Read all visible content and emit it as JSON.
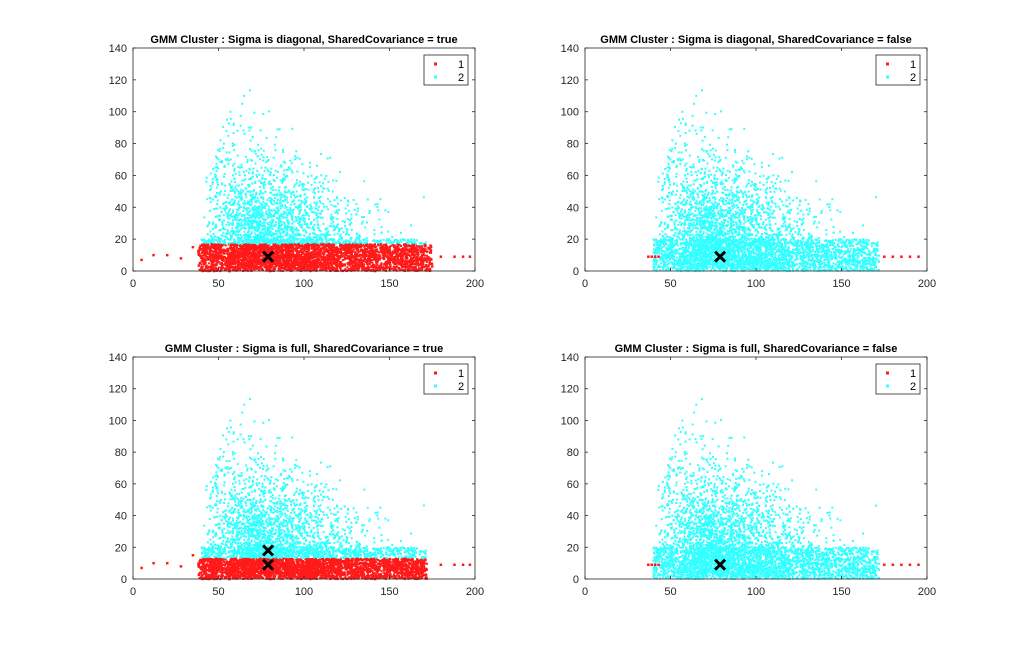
{
  "figure": {
    "background": "#ffffff",
    "cluster_colors": {
      "1": "#ff1a1a",
      "2": "#33ffff"
    },
    "centroid_color": "#000000"
  },
  "chart_data": [
    {
      "type": "scatter",
      "title": "GMM Cluster : Sigma is diagonal, SharedCovariance = true",
      "xlim": [
        0,
        200
      ],
      "ylim": [
        0,
        140
      ],
      "xticks": [
        0,
        50,
        100,
        150,
        200
      ],
      "yticks": [
        0,
        20,
        40,
        60,
        80,
        100,
        120,
        140
      ],
      "grid": false,
      "legend": {
        "placement": "top-right",
        "entries": [
          "1",
          "2"
        ]
      },
      "series": [
        {
          "name": "1",
          "color": "#ff1a1a",
          "region": {
            "y_upper": 17,
            "x_range": [
              38,
              175
            ]
          },
          "outliers": [
            [
              5,
              7
            ],
            [
              12,
              10
            ],
            [
              20,
              10
            ],
            [
              28,
              8
            ],
            [
              35,
              15
            ],
            [
              180,
              9
            ],
            [
              188,
              9
            ],
            [
              193,
              9
            ],
            [
              197,
              9
            ]
          ]
        },
        {
          "name": "2",
          "color": "#33ffff"
        }
      ],
      "centroids": [
        [
          79,
          9
        ]
      ]
    },
    {
      "type": "scatter",
      "title": "GMM Cluster : Sigma is diagonal, SharedCovariance = false",
      "xlim": [
        0,
        200
      ],
      "ylim": [
        0,
        140
      ],
      "xticks": [
        0,
        50,
        100,
        150,
        200
      ],
      "yticks": [
        0,
        20,
        40,
        60,
        80,
        100,
        120,
        140
      ],
      "grid": false,
      "legend": {
        "placement": "top-right",
        "entries": [
          "1",
          "2"
        ]
      },
      "series": [
        {
          "name": "1",
          "color": "#ff1a1a",
          "outliers": [
            [
              37,
              9
            ],
            [
              39,
              9
            ],
            [
              41,
              9
            ],
            [
              43,
              9
            ],
            [
              175,
              9
            ],
            [
              180,
              9
            ],
            [
              185,
              9
            ],
            [
              190,
              9
            ],
            [
              195,
              9
            ]
          ]
        },
        {
          "name": "2",
          "color": "#33ffff"
        }
      ],
      "centroids": [
        [
          79,
          9
        ]
      ]
    },
    {
      "type": "scatter",
      "title": "GMM Cluster : Sigma is full, SharedCovariance = true",
      "xlim": [
        0,
        200
      ],
      "ylim": [
        0,
        140
      ],
      "xticks": [
        0,
        50,
        100,
        150,
        200
      ],
      "yticks": [
        0,
        20,
        40,
        60,
        80,
        100,
        120,
        140
      ],
      "grid": false,
      "legend": {
        "placement": "top-right",
        "entries": [
          "1",
          "2"
        ]
      },
      "series": [
        {
          "name": "1",
          "color": "#ff1a1a",
          "region": {
            "y_upper": 13,
            "x_range": [
              38,
              172
            ]
          },
          "outliers": [
            [
              5,
              7
            ],
            [
              12,
              10
            ],
            [
              20,
              10
            ],
            [
              28,
              8
            ],
            [
              35,
              15
            ],
            [
              180,
              9
            ],
            [
              188,
              9
            ],
            [
              193,
              9
            ],
            [
              197,
              9
            ]
          ]
        },
        {
          "name": "2",
          "color": "#33ffff"
        }
      ],
      "centroids": [
        [
          79,
          9
        ],
        [
          79,
          18
        ]
      ]
    },
    {
      "type": "scatter",
      "title": "GMM Cluster : Sigma is full, SharedCovariance = false",
      "xlim": [
        0,
        200
      ],
      "ylim": [
        0,
        140
      ],
      "xticks": [
        0,
        50,
        100,
        150,
        200
      ],
      "yticks": [
        0,
        20,
        40,
        60,
        80,
        100,
        120,
        140
      ],
      "grid": false,
      "legend": {
        "placement": "top-right",
        "entries": [
          "1",
          "2"
        ]
      },
      "series": [
        {
          "name": "1",
          "color": "#ff1a1a",
          "outliers": [
            [
              37,
              9
            ],
            [
              39,
              9
            ],
            [
              41,
              9
            ],
            [
              43,
              9
            ],
            [
              175,
              9
            ],
            [
              180,
              9
            ],
            [
              185,
              9
            ],
            [
              190,
              9
            ],
            [
              195,
              9
            ]
          ]
        },
        {
          "name": "2",
          "color": "#33ffff"
        }
      ],
      "centroids": [
        [
          79,
          9
        ]
      ]
    }
  ]
}
